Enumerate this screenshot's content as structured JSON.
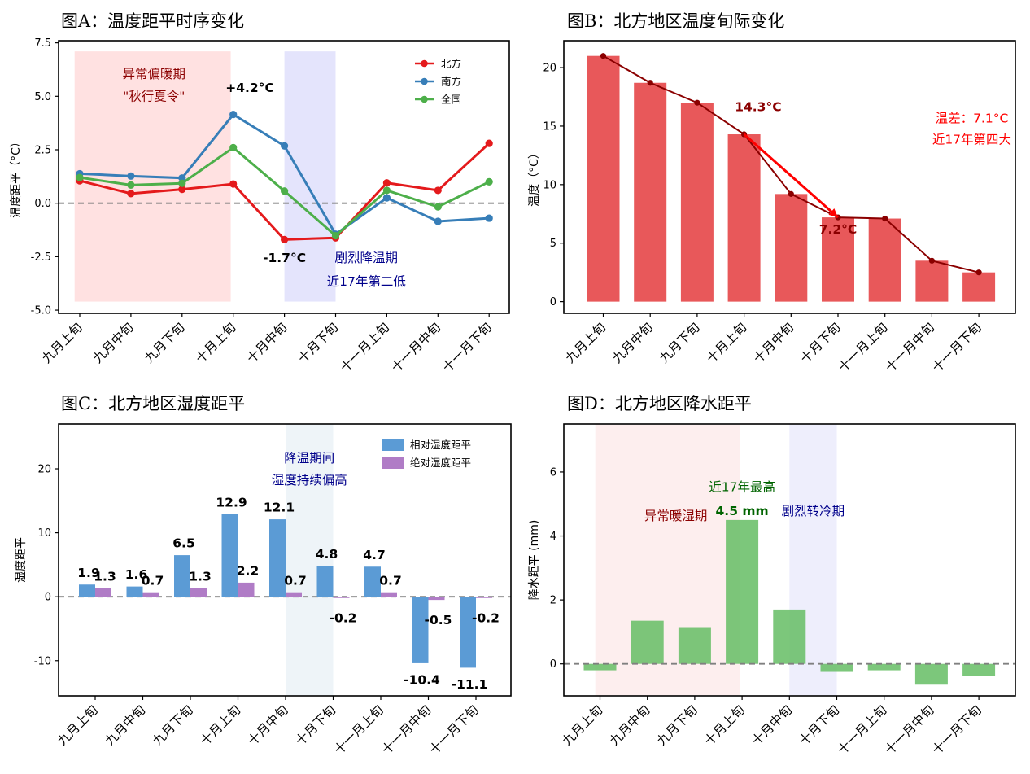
{
  "colors": {
    "north": "#e41a1c",
    "south": "#377eb8",
    "national": "#4daf4a",
    "bar_temp": "#e8585a",
    "line_temp": "#8b0000",
    "rel_hum": "#5b9bd5",
    "abs_hum": "#b07cc6",
    "precip": "#6abf69",
    "dark_red_text": "#8b0000",
    "navy_text": "#00008b",
    "green_text": "#006400",
    "red_text": "#ff0000"
  },
  "chart_data": [
    {
      "id": "A",
      "type": "line",
      "title": "图A：温度距平时序变化",
      "ylabel": "温度距平（°C）",
      "xlabel": "",
      "categories": [
        "九月上旬",
        "九月中旬",
        "九月下旬",
        "十月上旬",
        "十月中旬",
        "十月下旬",
        "十一月上旬",
        "十一月中旬",
        "十一月下旬"
      ],
      "ylim": [
        -5.15,
        7.6
      ],
      "yticks": [
        -5.0,
        -2.5,
        0.0,
        2.5,
        5.0,
        7.5
      ],
      "ytick_labels": [
        "-5.0",
        "-2.5",
        "0.0",
        "2.5",
        "5.0",
        "7.5"
      ],
      "reference_line": 0,
      "shaded_regions": [
        {
          "from_index": -0.1,
          "to_index": 2.95,
          "color": "#ffe1e1",
          "y_from": -4.6,
          "y_to": 7.1
        },
        {
          "from_index": 4.0,
          "to_index": 5.0,
          "color": "#e4e4fc",
          "y_from": -4.6,
          "y_to": 7.1
        }
      ],
      "series": [
        {
          "name": "北方",
          "color_key": "north",
          "values": [
            1.05,
            0.45,
            0.65,
            0.9,
            -1.7,
            -1.62,
            0.95,
            0.6,
            2.8
          ]
        },
        {
          "name": "南方",
          "color_key": "south",
          "values": [
            1.38,
            1.27,
            1.18,
            4.15,
            2.68,
            -1.45,
            0.25,
            -0.85,
            -0.7
          ]
        },
        {
          "name": "全国",
          "color_key": "national",
          "values": [
            1.2,
            0.85,
            0.93,
            2.6,
            0.57,
            -1.52,
            0.6,
            -0.17,
            1.0
          ]
        }
      ],
      "legend": {
        "position": "top-right",
        "items": [
          "北方",
          "南方",
          "全国"
        ]
      },
      "annotations": [
        {
          "text": "异常偏暖期",
          "x": 1.45,
          "y": 5.85,
          "color_key": "dark_red_text",
          "bold": false
        },
        {
          "text": "\"秋行夏令\"",
          "x": 1.45,
          "y": 4.8,
          "color_key": "dark_red_text",
          "bold": false
        },
        {
          "text": "+4.2°C",
          "x": 2.85,
          "y": 5.2,
          "color_key": "",
          "bold": true,
          "anchor": "start"
        },
        {
          "text": "-1.7°C",
          "x": 4.0,
          "y": -2.75,
          "color_key": "",
          "bold": true
        },
        {
          "text": "剧烈降温期",
          "x": 5.6,
          "y": -2.75,
          "color_key": "navy_text",
          "bold": false
        },
        {
          "text": "近17年第二低",
          "x": 5.6,
          "y": -3.85,
          "color_key": "navy_text",
          "bold": false
        }
      ]
    },
    {
      "id": "B",
      "type": "bar",
      "title": "图B：北方地区温度旬际变化",
      "ylabel": "温度（°C）",
      "xlabel": "",
      "categories": [
        "九月上旬",
        "九月中旬",
        "九月下旬",
        "十月上旬",
        "十月中旬",
        "十月下旬",
        "十一月上旬",
        "十一月中旬",
        "十一月下旬"
      ],
      "values": [
        21.0,
        18.7,
        17.0,
        14.3,
        9.2,
        7.2,
        7.1,
        3.5,
        2.5
      ],
      "line_values": [
        21.0,
        18.7,
        17.0,
        14.3,
        9.2,
        7.2,
        7.1,
        3.5,
        2.5
      ],
      "ylim": [
        -1.0,
        22.3
      ],
      "yticks": [
        0,
        5,
        10,
        15,
        20
      ],
      "ytick_labels": [
        "0",
        "5",
        "10",
        "15",
        "20"
      ],
      "arrow": {
        "from_index": 3,
        "from_value": 14.3,
        "to_index": 5,
        "to_value": 7.2
      },
      "annotations": [
        {
          "text": "14.3°C",
          "x": 3.3,
          "y": 16.3,
          "color_key": "dark_red_text",
          "bold": true
        },
        {
          "text": "7.2°C",
          "x": 5.0,
          "y": 5.8,
          "color_key": "dark_red_text",
          "bold": true
        },
        {
          "text": "温差：7.1°C",
          "x": 7.85,
          "y": 15.3,
          "color_key": "red_text",
          "bold": false
        },
        {
          "text": "近17年第四大",
          "x": 7.85,
          "y": 13.5,
          "color_key": "red_text",
          "bold": false
        }
      ]
    },
    {
      "id": "C",
      "type": "bar",
      "title": "图C：北方地区湿度距平",
      "ylabel": "湿度距平",
      "xlabel": "",
      "categories": [
        "九月上旬",
        "九月中旬",
        "九月下旬",
        "十月上旬",
        "十月中旬",
        "十月下旬",
        "十一月上旬",
        "十一月中旬",
        "十一月下旬"
      ],
      "ylim": [
        -15.5,
        27.0
      ],
      "yticks": [
        -10,
        0,
        10,
        20
      ],
      "ytick_labels": [
        "-10",
        "0",
        "10",
        "20"
      ],
      "reference_line": 0,
      "shaded_regions": [
        {
          "from_index": 4.0,
          "to_index": 5.0,
          "color": "#eef4f8"
        }
      ],
      "series": [
        {
          "name": "相对湿度距平",
          "color_key": "rel_hum",
          "values": [
            1.9,
            1.6,
            6.5,
            12.9,
            12.1,
            4.8,
            4.7,
            -10.4,
            -11.1
          ],
          "labels": [
            "1.9",
            "1.6",
            "6.5",
            "12.9",
            "12.1",
            "4.8",
            "4.7",
            "-10.4",
            "-11.1"
          ]
        },
        {
          "name": "绝对湿度距平",
          "color_key": "abs_hum",
          "values": [
            1.3,
            0.7,
            1.3,
            2.2,
            0.7,
            -0.2,
            0.7,
            -0.5,
            -0.2
          ],
          "labels": [
            "1.3",
            "0.7",
            "1.3",
            "2.2",
            "0.7",
            "-0.2",
            "0.7",
            "-0.5",
            "-0.2"
          ]
        }
      ],
      "legend": {
        "position": "top-right",
        "items": [
          "相对湿度距平",
          "绝对湿度距平"
        ]
      },
      "annotations": [
        {
          "text": "降温期间",
          "x": 4.5,
          "y": 21.0,
          "color_key": "navy_text",
          "bold": false
        },
        {
          "text": "湿度持续偏高",
          "x": 4.5,
          "y": 17.6,
          "color_key": "navy_text",
          "bold": false
        }
      ]
    },
    {
      "id": "D",
      "type": "bar",
      "title": "图D：北方地区降水距平",
      "ylabel": "降水距平 (mm)",
      "xlabel": "",
      "categories": [
        "九月上旬",
        "九月中旬",
        "九月下旬",
        "十月上旬",
        "十月中旬",
        "十月下旬",
        "十一月上旬",
        "十一月中旬",
        "十一月下旬"
      ],
      "values": [
        -0.2,
        1.35,
        1.15,
        4.5,
        1.7,
        -0.25,
        -0.2,
        -0.65,
        -0.38
      ],
      "ylim": [
        -1.0,
        7.5
      ],
      "yticks": [
        0,
        2,
        4,
        6
      ],
      "ytick_labels": [
        "0",
        "2",
        "4",
        "6"
      ],
      "reference_line": 0,
      "shaded_regions": [
        {
          "from_index": -0.1,
          "to_index": 2.95,
          "color": "#fdeeee"
        },
        {
          "from_index": 4.0,
          "to_index": 5.0,
          "color": "#eeeefc"
        }
      ],
      "annotations": [
        {
          "text": "异常暖湿期",
          "x": 1.6,
          "y": 4.5,
          "color_key": "dark_red_text",
          "bold": false
        },
        {
          "text": "近17年最高",
          "x": 3.0,
          "y": 5.4,
          "color_key": "green_text",
          "bold": false
        },
        {
          "text": "4.5 mm",
          "x": 3.0,
          "y": 4.65,
          "color_key": "green_text",
          "bold": true
        },
        {
          "text": "剧烈转冷期",
          "x": 4.5,
          "y": 4.65,
          "color_key": "navy_text",
          "bold": false
        }
      ]
    }
  ]
}
